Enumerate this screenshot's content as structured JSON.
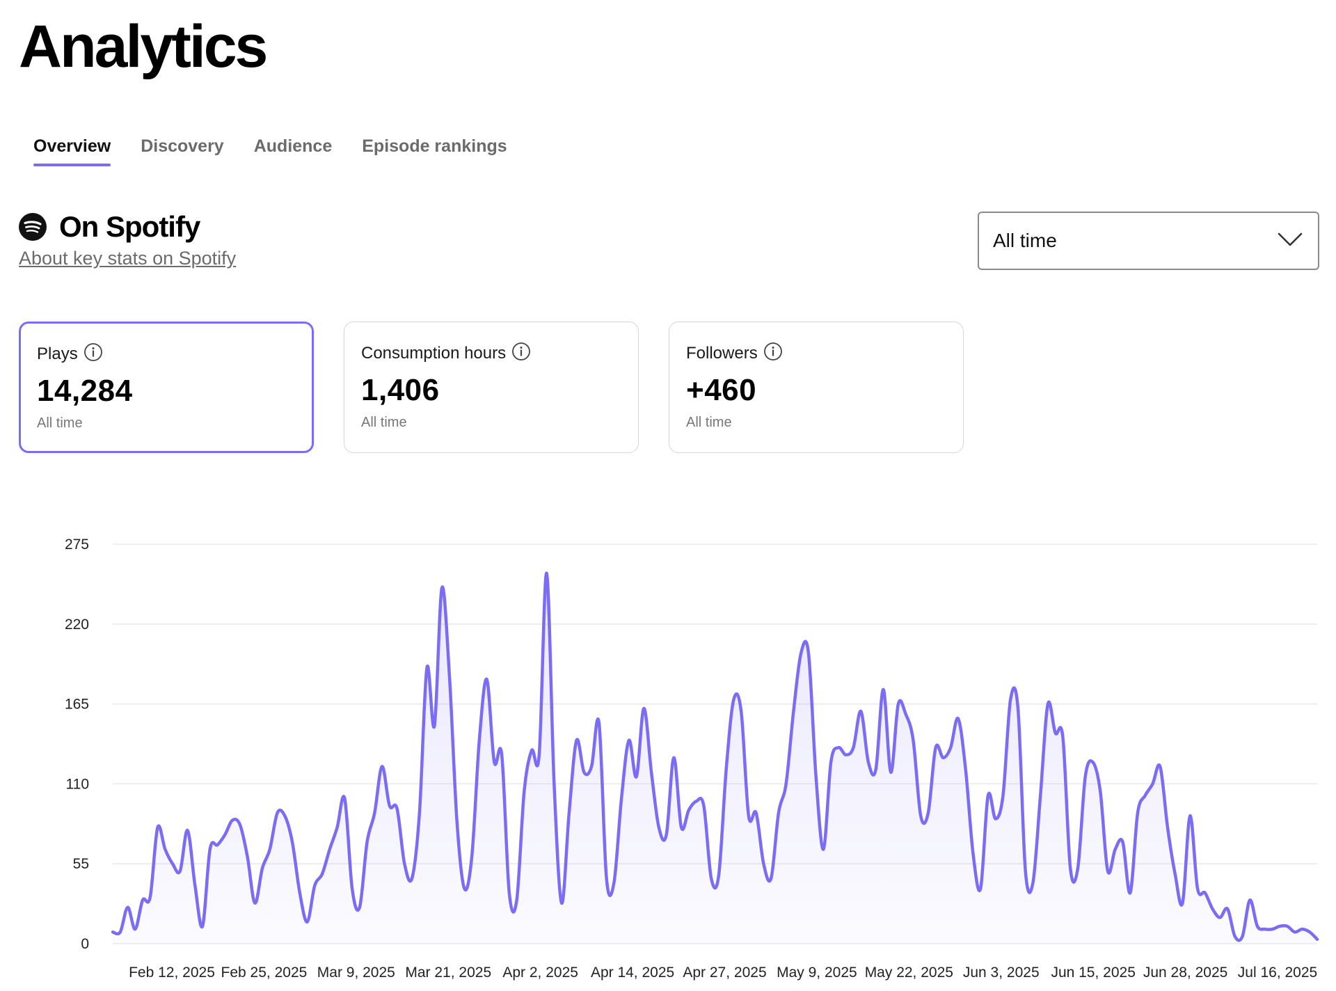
{
  "page": {
    "title": "Analytics"
  },
  "tabs": [
    {
      "label": "Overview",
      "active": true
    },
    {
      "label": "Discovery",
      "active": false
    },
    {
      "label": "Audience",
      "active": false
    },
    {
      "label": "Episode rankings",
      "active": false
    }
  ],
  "section": {
    "icon": "spotify-icon",
    "title": "On Spotify",
    "about_link": "About key stats on Spotify"
  },
  "range_select": {
    "value": "All time",
    "icon": "chevron-down-icon"
  },
  "stats": [
    {
      "label": "Plays",
      "value": "14,284",
      "sub": "All time",
      "selected": true,
      "icon": "info-icon"
    },
    {
      "label": "Consumption hours",
      "value": "1,406",
      "sub": "All time",
      "selected": false,
      "icon": "info-icon"
    },
    {
      "label": "Followers",
      "value": "+460",
      "sub": "All time",
      "selected": false,
      "icon": "info-icon"
    }
  ],
  "colors": {
    "accent": "#7b6cf6",
    "area_fill": "#efedfd",
    "gridline": "#e6e6e6"
  },
  "chart_data": {
    "type": "area",
    "ylim": [
      0,
      275
    ],
    "yticks": [
      0,
      55,
      110,
      165,
      220,
      275
    ],
    "grid": true,
    "x_tick_labels": [
      "Feb 12, 2025",
      "Feb 25, 2025",
      "Mar 9, 2025",
      "Mar 21, 2025",
      "Apr 2, 2025",
      "Apr 14, 2025",
      "Apr 27, 2025",
      "May 9, 2025",
      "May 22, 2025",
      "Jun 3, 2025",
      "Jun 15, 2025",
      "Jun 28, 2025",
      "Jul 16, 2025"
    ],
    "x_start": "2025-02-01",
    "x_end": "2025-07-18",
    "series": [
      {
        "values": [
          8,
          8,
          25,
          10,
          30,
          32,
          80,
          65,
          55,
          50,
          78,
          40,
          12,
          65,
          68,
          75,
          85,
          82,
          60,
          28,
          52,
          65,
          90,
          88,
          70,
          35,
          15,
          40,
          48,
          65,
          80,
          100,
          38,
          25,
          70,
          90,
          122,
          95,
          93,
          55,
          45,
          90,
          190,
          150,
          245,
          185,
          85,
          38,
          60,
          140,
          182,
          125,
          130,
          35,
          30,
          105,
          133,
          130,
          255,
          110,
          28,
          90,
          140,
          118,
          122,
          152,
          45,
          42,
          100,
          140,
          115,
          162,
          118,
          80,
          75,
          128,
          80,
          92,
          98,
          95,
          45,
          47,
          120,
          168,
          160,
          88,
          90,
          55,
          45,
          90,
          110,
          160,
          200,
          200,
          115,
          65,
          125,
          135,
          130,
          135,
          160,
          125,
          120,
          175,
          118,
          165,
          158,
          140,
          88,
          90,
          135,
          128,
          135,
          155,
          120,
          62,
          38,
          102,
          86,
          102,
          168,
          162,
          50,
          42,
          102,
          165,
          145,
          142,
          52,
          52,
          115,
          125,
          105,
          50,
          65,
          70,
          35,
          90,
          102,
          110,
          122,
          80,
          48,
          28,
          88,
          38,
          35,
          24,
          18,
          24,
          5,
          5,
          30,
          12,
          10,
          10,
          12,
          12,
          8,
          10,
          8,
          3
        ]
      }
    ]
  }
}
